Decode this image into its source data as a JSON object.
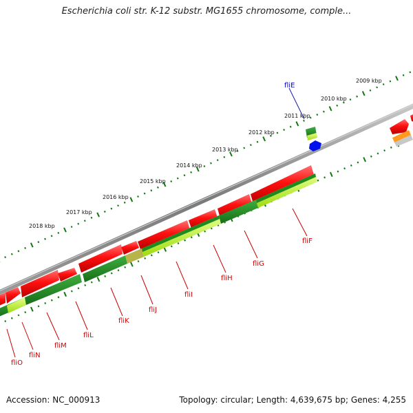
{
  "title": "Escherichia coli str. K-12 substr. MG1655 chromosome, comple...",
  "footer": {
    "accession": "Accession: NC_000913",
    "topology": "Topology: circular; Length: 4,639,675 bp; Genes: 4,255"
  },
  "scale_labels": [
    "2009 kbp",
    "2010 kbp",
    "2011 kbp",
    "2012 kbp",
    "2013 kbp",
    "2014 kbp",
    "2015 kbp",
    "2016 kbp",
    "2017 kbp",
    "2018 kbp"
  ],
  "genes": [
    {
      "name": "fliE",
      "color": "#0000cc"
    },
    {
      "name": "fliF",
      "color": "#cc0000"
    },
    {
      "name": "fliG",
      "color": "#cc0000"
    },
    {
      "name": "fliH",
      "color": "#cc0000"
    },
    {
      "name": "fliI",
      "color": "#cc0000"
    },
    {
      "name": "fliJ",
      "color": "#cc0000"
    },
    {
      "name": "fliK",
      "color": "#cc0000"
    },
    {
      "name": "fliL",
      "color": "#cc0000"
    },
    {
      "name": "fliM",
      "color": "#cc0000"
    },
    {
      "name": "fliN",
      "color": "#cc0000"
    },
    {
      "name": "fliO",
      "color": "#cc0000"
    }
  ],
  "colors": {
    "forward_feature": "#e60000",
    "reverse_feature_dark": "#1e8a1e",
    "reverse_feature_light": "#b5f21e",
    "backbone": "#8c8c8c",
    "scale": "#117711",
    "strand_marker": "#0011ee"
  }
}
